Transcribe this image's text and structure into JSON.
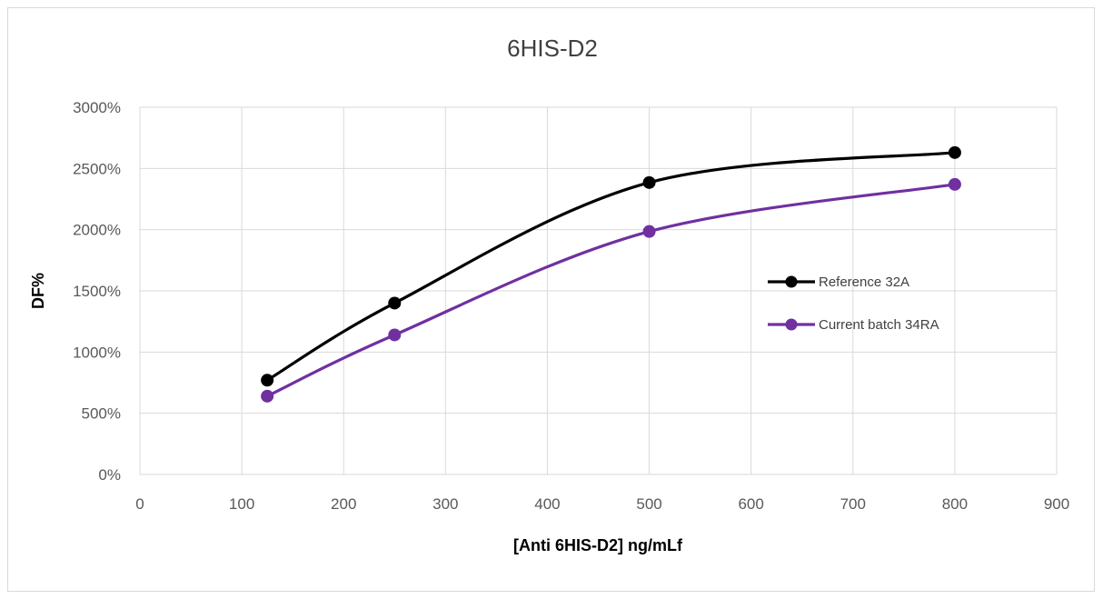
{
  "chart_data": {
    "type": "line",
    "title": "6HIS-D2",
    "xlabel": "[Anti 6HIS-D2] ng/mLf",
    "ylabel": "DF%",
    "xlim": [
      0,
      900
    ],
    "ylim": [
      0,
      3000
    ],
    "x_ticks": [
      0,
      100,
      200,
      300,
      400,
      500,
      600,
      700,
      800,
      900
    ],
    "y_ticks": [
      0,
      500,
      1000,
      1500,
      2000,
      2500,
      3000
    ],
    "y_tick_labels": [
      "0%",
      "500%",
      "1000%",
      "1500%",
      "2000%",
      "2500%",
      "3000%"
    ],
    "grid": true,
    "smooth": true,
    "legend_position": "right",
    "series": [
      {
        "name": "Reference 32A",
        "color": "#000000",
        "x": [
          125,
          250,
          500,
          800
        ],
        "y": [
          770,
          1400,
          2385,
          2630
        ]
      },
      {
        "name": "Current batch 34RA",
        "color": "#7030a0",
        "x": [
          125,
          250,
          500,
          800
        ],
        "y": [
          640,
          1140,
          1985,
          2370
        ]
      }
    ]
  }
}
